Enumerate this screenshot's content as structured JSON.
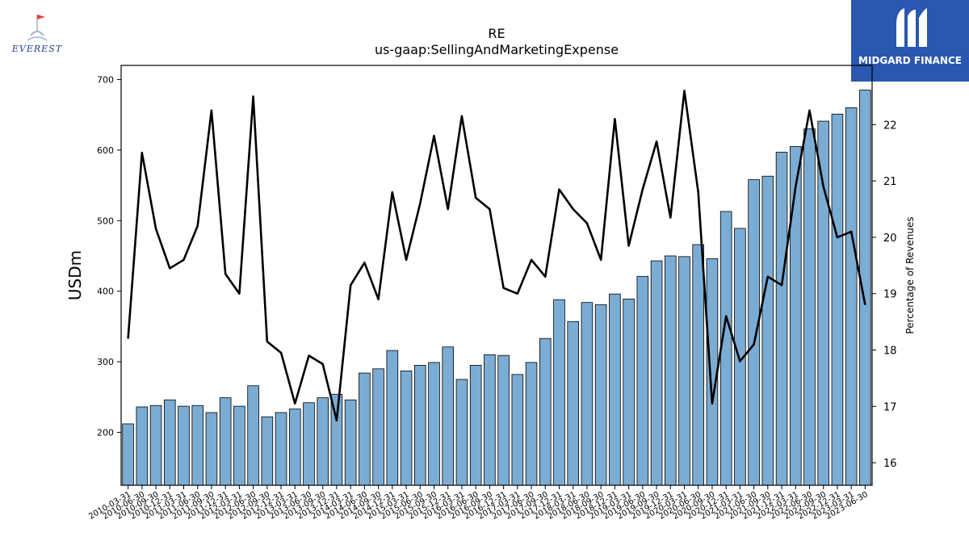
{
  "header": {
    "ticker": "RE",
    "metric": "us-gaap:SellingAndMarketingExpense"
  },
  "logos": {
    "left": "EVEREST",
    "right": "MIDGARD FINANCE"
  },
  "chart_data": {
    "type": "bar",
    "ylabel": "USDm",
    "y2label": "Percentage of Revenues",
    "ylim": [
      125,
      720
    ],
    "y2lim": [
      15.6,
      23.05
    ],
    "yticks": [
      200,
      300,
      400,
      500,
      600,
      700
    ],
    "y2ticks": [
      16,
      17,
      18,
      19,
      20,
      21,
      22
    ],
    "bar_color": "#7bacd4",
    "line_color": "#000000",
    "categories": [
      "2010-03-31",
      "2010-06-30",
      "2010-09-30",
      "2010-12-31",
      "2011-03-31",
      "2011-06-30",
      "2011-09-30",
      "2011-12-31",
      "2012-03-31",
      "2012-06-30",
      "2012-09-30",
      "2012-12-31",
      "2013-03-31",
      "2013-06-30",
      "2013-09-30",
      "2013-12-31",
      "2014-03-31",
      "2014-06-30",
      "2014-09-30",
      "2014-12-31",
      "2015-03-31",
      "2015-06-30",
      "2015-09-30",
      "2015-12-31",
      "2016-03-31",
      "2016-06-30",
      "2016-09-30",
      "2016-12-31",
      "2017-03-31",
      "2017-06-30",
      "2017-09-30",
      "2017-12-31",
      "2018-03-31",
      "2018-06-30",
      "2018-09-30",
      "2018-12-31",
      "2019-03-31",
      "2019-06-30",
      "2019-09-30",
      "2019-12-31",
      "2020-03-31",
      "2020-06-30",
      "2020-09-30",
      "2020-12-31",
      "2021-03-31",
      "2021-06-30",
      "2021-09-30",
      "2021-12-31",
      "2022-03-31",
      "2022-06-30",
      "2022-09-30",
      "2022-12-31",
      "2023-03-31",
      "2023-06-30"
    ],
    "series": [
      {
        "values": [
          212,
          236,
          238,
          246,
          237,
          238,
          228,
          249,
          237,
          266,
          222,
          228,
          233,
          242,
          249,
          254,
          246,
          284,
          290,
          316,
          287,
          295,
          299,
          321,
          275,
          295,
          310,
          309,
          282,
          299,
          333,
          388,
          357,
          384,
          381,
          396,
          389,
          421,
          443,
          450,
          449,
          466,
          446,
          513,
          489,
          558,
          563,
          597,
          605,
          630,
          641,
          651,
          660,
          685
        ]
      },
      {
        "values": [
          18.2,
          21.5,
          20.15,
          19.45,
          19.6,
          20.2,
          22.25,
          19.35,
          19.0,
          22.5,
          18.15,
          17.95,
          17.05,
          17.9,
          17.75,
          16.75,
          19.15,
          19.55,
          18.9,
          20.8,
          19.6,
          20.6,
          21.8,
          20.5,
          22.15,
          20.7,
          20.5,
          19.1,
          19.0,
          19.6,
          19.3,
          20.85,
          20.5,
          20.25,
          19.6,
          22.1,
          19.85,
          20.85,
          21.7,
          20.35,
          22.6,
          20.8,
          17.05,
          18.6,
          17.8,
          18.1,
          19.3,
          19.15,
          20.9,
          22.25,
          20.9,
          20.0,
          20.1,
          18.8
        ]
      }
    ]
  }
}
